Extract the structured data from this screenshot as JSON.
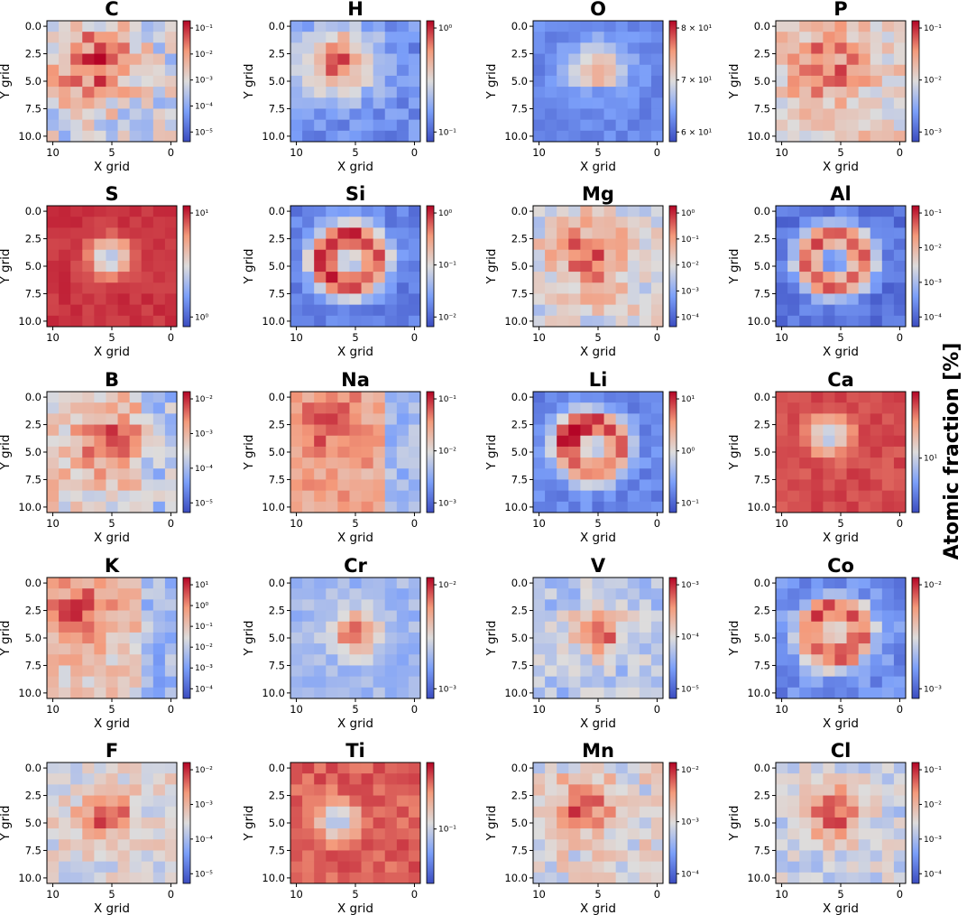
{
  "chart_data": {
    "type": "heatmap",
    "colormap": "coolwarm",
    "scale": "log",
    "shared_label": "Atomic fraction [%]",
    "xlabel": "X grid",
    "ylabel": "Y grid",
    "xticks": [
      "10",
      "5",
      "0"
    ],
    "yticks": [
      "0.0",
      "2.5",
      "5.0",
      "7.5",
      "10.0"
    ],
    "grid_size": [
      11,
      11
    ],
    "panels": [
      {
        "title": "C",
        "cbar_ticks": [
          "10⁻¹",
          "10⁻²",
          "10⁻³",
          "10⁻⁴",
          "10⁻⁵"
        ],
        "pattern": "c"
      },
      {
        "title": "H",
        "cbar_ticks": [
          "10⁰",
          "10⁻¹"
        ],
        "pattern": "h"
      },
      {
        "title": "O",
        "cbar_ticks": [
          "8 × 10¹",
          "7 × 10¹",
          "6 × 10¹"
        ],
        "pattern": "o"
      },
      {
        "title": "P",
        "cbar_ticks": [
          "10⁻¹",
          "10⁻²",
          "10⁻³"
        ],
        "pattern": "p"
      },
      {
        "title": "S",
        "cbar_ticks": [
          "10¹",
          "10⁰"
        ],
        "pattern": "s"
      },
      {
        "title": "Si",
        "cbar_ticks": [
          "10⁰",
          "10⁻¹",
          "10⁻²"
        ],
        "pattern": "si"
      },
      {
        "title": "Mg",
        "cbar_ticks": [
          "10⁰",
          "10⁻¹",
          "10⁻²",
          "10⁻³",
          "10⁻⁴"
        ],
        "pattern": "mg"
      },
      {
        "title": "Al",
        "cbar_ticks": [
          "10⁻¹",
          "10⁻²",
          "10⁻³",
          "10⁻⁴"
        ],
        "pattern": "al"
      },
      {
        "title": "B",
        "cbar_ticks": [
          "10⁻²",
          "10⁻³",
          "10⁻⁴",
          "10⁻⁵"
        ],
        "pattern": "b"
      },
      {
        "title": "Na",
        "cbar_ticks": [
          "10⁻¹",
          "10⁻²",
          "10⁻³"
        ],
        "pattern": "na"
      },
      {
        "title": "Li",
        "cbar_ticks": [
          "10¹",
          "10⁰",
          "10⁻¹"
        ],
        "pattern": "li"
      },
      {
        "title": "Ca",
        "cbar_ticks": [
          "10¹"
        ],
        "pattern": "ca"
      },
      {
        "title": "K",
        "cbar_ticks": [
          "10¹",
          "10⁰",
          "10⁻¹",
          "10⁻²",
          "10⁻³",
          "10⁻⁴"
        ],
        "pattern": "k"
      },
      {
        "title": "Cr",
        "cbar_ticks": [
          "10⁻²",
          "10⁻³"
        ],
        "pattern": "cr"
      },
      {
        "title": "V",
        "cbar_ticks": [
          "10⁻³",
          "10⁻⁴",
          "10⁻⁵"
        ],
        "pattern": "v"
      },
      {
        "title": "Co",
        "cbar_ticks": [
          "10⁻²",
          "10⁻³"
        ],
        "pattern": "co"
      },
      {
        "title": "F",
        "cbar_ticks": [
          "10⁻²",
          "10⁻³",
          "10⁻⁴",
          "10⁻⁵"
        ],
        "pattern": "f"
      },
      {
        "title": "Ti",
        "cbar_ticks": [
          "10⁻¹"
        ],
        "pattern": "ti"
      },
      {
        "title": "Mn",
        "cbar_ticks": [
          "10⁻²",
          "10⁻³",
          "10⁻⁴"
        ],
        "pattern": "mn"
      },
      {
        "title": "Cl",
        "cbar_ticks": [
          "10⁻¹",
          "10⁻²",
          "10⁻³",
          "10⁻⁴"
        ],
        "pattern": "cl"
      }
    ]
  }
}
